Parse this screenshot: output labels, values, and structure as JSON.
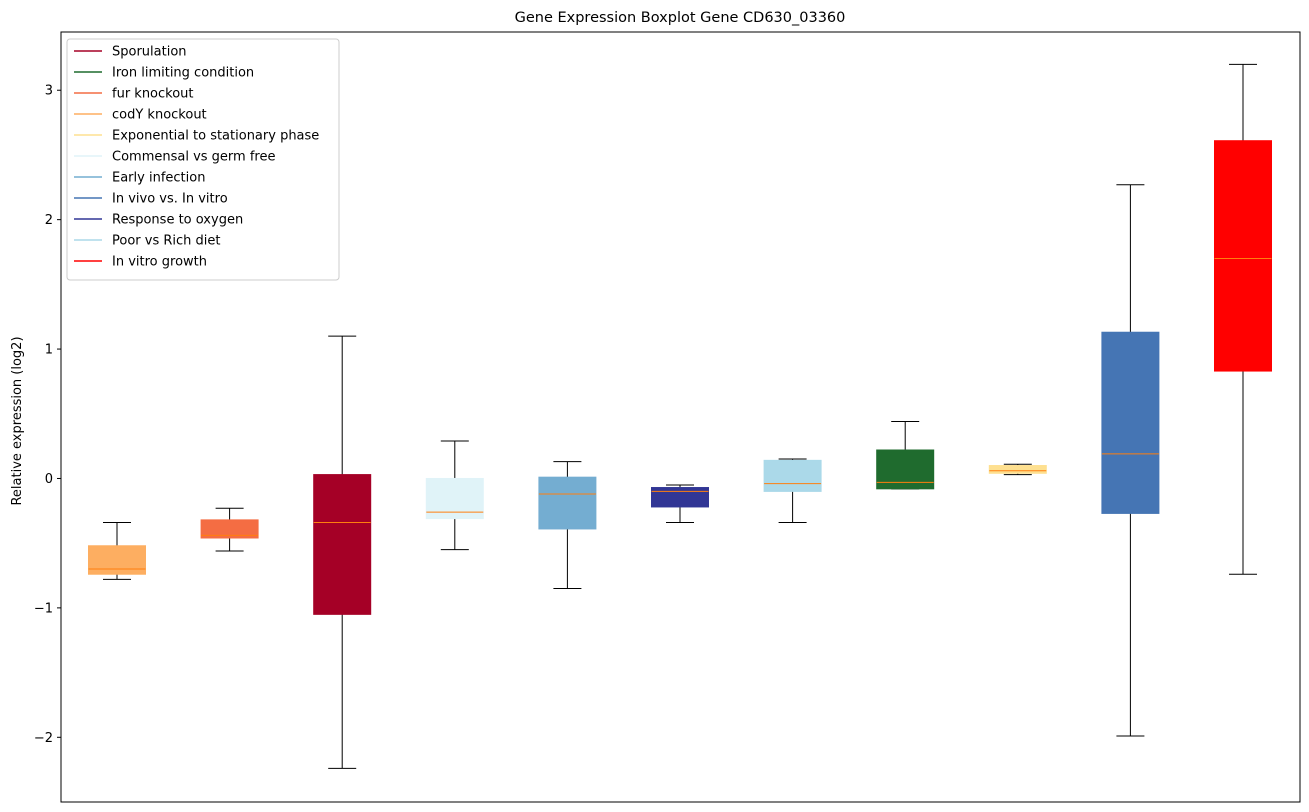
{
  "chart_data": {
    "type": "boxplot",
    "title": "Gene Expression Boxplot Gene CD630_03360",
    "xlabel": "",
    "ylabel": "Relative expression (log2)",
    "ylim": [
      -2.5,
      3.45
    ],
    "yticks": [
      -2,
      -1,
      0,
      1,
      2,
      3
    ],
    "yticklabels": [
      "−2",
      "−1",
      "0",
      "1",
      "2",
      "3"
    ],
    "grid": false,
    "legend_position": "top-left",
    "median_color": "#ff7f0e",
    "legend": [
      {
        "label": "Sporulation",
        "color": "#a50026"
      },
      {
        "label": "Iron limiting condition",
        "color": "#1f6b2e"
      },
      {
        "label": "fur knockout",
        "color": "#f46d43"
      },
      {
        "label": "codY knockout",
        "color": "#fdae61"
      },
      {
        "label": "Exponential to stationary phase",
        "color": "#fee090"
      },
      {
        "label": "Commensal vs germ free",
        "color": "#e0f3f8"
      },
      {
        "label": "Early infection",
        "color": "#74add1"
      },
      {
        "label": "In vivo vs. In vitro",
        "color": "#4575b4"
      },
      {
        "label": "Response to oxygen",
        "color": "#313695"
      },
      {
        "label": "Poor vs Rich diet",
        "color": "#abd9e9"
      },
      {
        "label": "In vitro growth",
        "color": "#ff0000"
      }
    ],
    "boxes": [
      {
        "color": "#fdae61",
        "whislo": -0.78,
        "q1": -0.74,
        "med": -0.7,
        "q3": -0.52,
        "whishi": -0.34
      },
      {
        "color": "#f46d43",
        "whislo": -0.56,
        "q1": -0.46,
        "med": -0.44,
        "q3": -0.32,
        "whishi": -0.23
      },
      {
        "color": "#a50026",
        "whislo": -2.24,
        "q1": -1.05,
        "med": -0.34,
        "q3": 0.03,
        "whishi": 1.1
      },
      {
        "color": "#e0f3f8",
        "whislo": -0.55,
        "q1": -0.31,
        "med": -0.26,
        "q3": 0.0,
        "whishi": 0.29
      },
      {
        "color": "#74add1",
        "whislo": -0.85,
        "q1": -0.39,
        "med": -0.12,
        "q3": 0.01,
        "whishi": 0.13
      },
      {
        "color": "#313695",
        "whislo": -0.34,
        "q1": -0.22,
        "med": -0.1,
        "q3": -0.07,
        "whishi": -0.05
      },
      {
        "color": "#abd9e9",
        "whislo": -0.34,
        "q1": -0.1,
        "med": -0.04,
        "q3": 0.14,
        "whishi": 0.15
      },
      {
        "color": "#1f6b2e",
        "whislo": -0.08,
        "q1": -0.08,
        "med": -0.03,
        "q3": 0.22,
        "whishi": 0.44
      },
      {
        "color": "#fee090",
        "whislo": 0.03,
        "q1": 0.04,
        "med": 0.06,
        "q3": 0.1,
        "whishi": 0.11
      },
      {
        "color": "#4575b4",
        "whislo": -1.99,
        "q1": -0.27,
        "med": 0.19,
        "q3": 1.13,
        "whishi": 2.27
      },
      {
        "color": "#ff0000",
        "whislo": -0.74,
        "q1": 0.83,
        "med": 1.7,
        "q3": 2.61,
        "whishi": 3.2
      }
    ]
  }
}
